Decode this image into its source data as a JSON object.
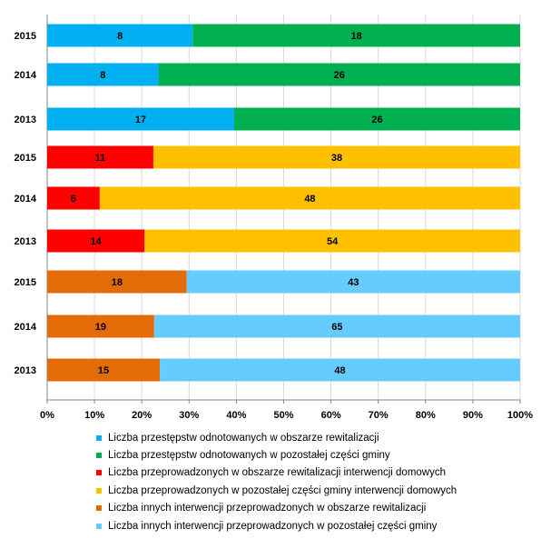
{
  "chart_data": {
    "type": "bar",
    "orientation": "horizontal",
    "stacked": "percent",
    "categories": [
      "2015",
      "2014",
      "2013",
      "2015",
      "2014",
      "2013",
      "2015",
      "2014",
      "2013"
    ],
    "series": [
      {
        "name": "Liczba przestępstw odnotowanych w obszarze rewitalizacji",
        "color": "#00b0f0",
        "values": [
          8,
          8,
          17,
          null,
          null,
          null,
          null,
          null,
          null
        ]
      },
      {
        "name": "Liczba przestępstw odnotowanych w pozostałej części gminy",
        "color": "#00b050",
        "values": [
          18,
          26,
          26,
          null,
          null,
          null,
          null,
          null,
          null
        ]
      },
      {
        "name": "Liczba przeprowadzonych w obszarze rewitalizacji interwencji domowych",
        "color": "#ff0000",
        "values": [
          null,
          null,
          null,
          11,
          6,
          14,
          null,
          null,
          null
        ]
      },
      {
        "name": "Liczba przeprowadzonych w pozostałej części gminy interwencji domowych",
        "color": "#ffc000",
        "values": [
          null,
          null,
          null,
          38,
          48,
          54,
          null,
          null,
          null
        ]
      },
      {
        "name": "Liczba innych interwencji przeprowadzonych w obszarze rewitalizacji",
        "color": "#e36c09",
        "values": [
          null,
          null,
          null,
          null,
          null,
          null,
          18,
          19,
          15
        ]
      },
      {
        "name": "Liczba innych interwencji przeprowadzonych w pozostałej części gminy",
        "color": "#66ccff",
        "values": [
          null,
          null,
          null,
          null,
          null,
          null,
          43,
          65,
          48
        ]
      }
    ],
    "xlim": [
      0,
      100
    ],
    "xticks": [
      "0%",
      "10%",
      "20%",
      "30%",
      "40%",
      "50%",
      "60%",
      "70%",
      "80%",
      "90%",
      "100%"
    ],
    "grid": true,
    "legend_position": "bottom"
  }
}
